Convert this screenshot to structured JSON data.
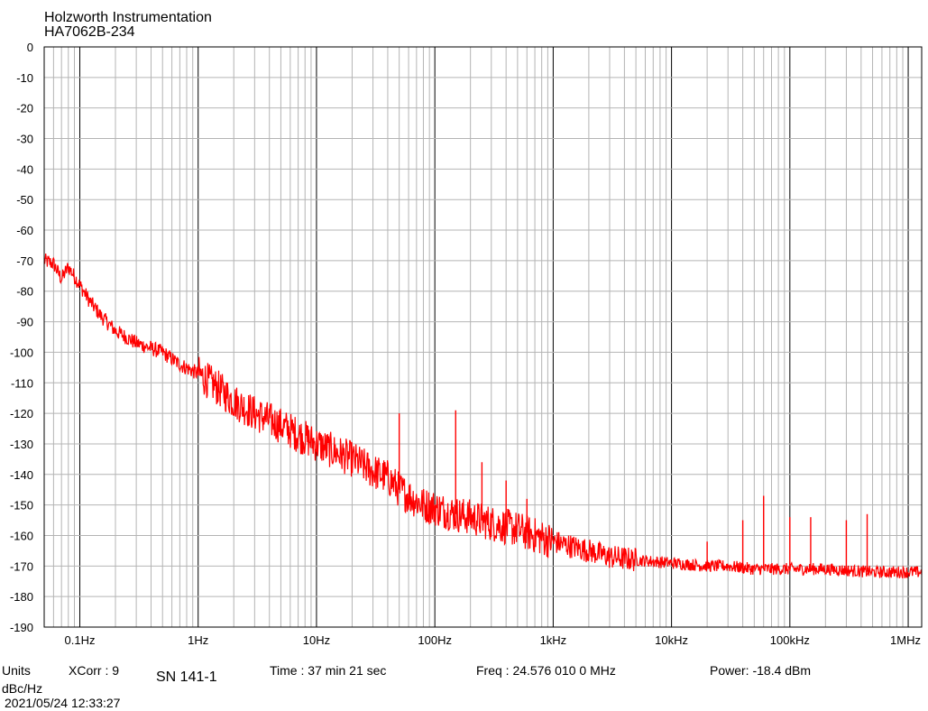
{
  "header": {
    "title": "Holzworth Instrumentation",
    "model": "HA7062B-234"
  },
  "footer": {
    "units_label": "Units",
    "units_value": "dBc/Hz",
    "xcorr": "XCorr : 9",
    "serial": "SN 141-1",
    "time": "Time : 37 min 21 sec",
    "freq": "Freq : 24.576 010 0 MHz",
    "power": "Power: -18.4 dBm",
    "timestamp": "2021/05/24 12:33:27"
  },
  "colors": {
    "trace": "#ff0000",
    "grid": "#b4b4b4",
    "major_grid": "#000000"
  },
  "chart_data": {
    "type": "line",
    "title": "Holzworth Instrumentation",
    "subtitle": "HA7062B-234",
    "x_scale": "log",
    "xlim": [
      0.05,
      1300000
    ],
    "ylim": [
      -190,
      0
    ],
    "x_ticks": [
      {
        "value": 0.1,
        "label": "0.1Hz"
      },
      {
        "value": 1,
        "label": "1Hz"
      },
      {
        "value": 10,
        "label": "10Hz"
      },
      {
        "value": 100,
        "label": "100Hz"
      },
      {
        "value": 1000,
        "label": "1kHz"
      },
      {
        "value": 10000,
        "label": "10kHz"
      },
      {
        "value": 100000,
        "label": "100kHz"
      },
      {
        "value": 1000000,
        "label": "1MHz"
      }
    ],
    "y_ticks": [
      {
        "value": 0,
        "label": "0"
      },
      {
        "value": -10,
        "label": "-10"
      },
      {
        "value": -20,
        "label": "-20"
      },
      {
        "value": -30,
        "label": "-30"
      },
      {
        "value": -40,
        "label": "-40"
      },
      {
        "value": -50,
        "label": "-50"
      },
      {
        "value": -60,
        "label": "-60"
      },
      {
        "value": -70,
        "label": "-70"
      },
      {
        "value": -80,
        "label": "-80"
      },
      {
        "value": -90,
        "label": "-90"
      },
      {
        "value": -100,
        "label": "-100"
      },
      {
        "value": -110,
        "label": "-110"
      },
      {
        "value": -120,
        "label": "-120"
      },
      {
        "value": -130,
        "label": "-130"
      },
      {
        "value": -140,
        "label": "-140"
      },
      {
        "value": -150,
        "label": "-150"
      },
      {
        "value": -160,
        "label": "-160"
      },
      {
        "value": -170,
        "label": "-170"
      },
      {
        "value": -180,
        "label": "-180"
      },
      {
        "value": -190,
        "label": "-190"
      }
    ],
    "grid": true,
    "series": [
      {
        "color": "#ff0000",
        "x": [
          0.05,
          0.06,
          0.07,
          0.08,
          0.1,
          0.12,
          0.15,
          0.2,
          0.3,
          0.5,
          0.7,
          1,
          1.5,
          2,
          3,
          5,
          7,
          10,
          15,
          20,
          30,
          40,
          50,
          60,
          80,
          100,
          150,
          200,
          300,
          500,
          700,
          1000,
          2000,
          3000,
          5000,
          10000,
          20000,
          30000,
          50000,
          100000,
          200000,
          500000,
          1000000,
          1300000
        ],
        "y": [
          -70,
          -71,
          -76,
          -72,
          -78,
          -83,
          -88,
          -93,
          -97,
          -100,
          -104,
          -107,
          -112,
          -116,
          -120,
          -124,
          -127,
          -130,
          -133,
          -135,
          -139,
          -141,
          -145,
          -147,
          -150,
          -151,
          -153,
          -154,
          -156,
          -158,
          -160,
          -162,
          -165,
          -167,
          -168,
          -169,
          -170,
          -170,
          -171,
          -171,
          -171,
          -172,
          -172,
          -172
        ]
      }
    ],
    "spurs": [
      {
        "x": 50,
        "y": -120
      },
      {
        "x": 150,
        "y": -119
      },
      {
        "x": 250,
        "y": -136
      },
      {
        "x": 400,
        "y": -142
      },
      {
        "x": 600,
        "y": -148
      },
      {
        "x": 20000,
        "y": -162
      },
      {
        "x": 40000,
        "y": -155
      },
      {
        "x": 60000,
        "y": -147
      },
      {
        "x": 100000,
        "y": -154
      },
      {
        "x": 150000,
        "y": -154
      },
      {
        "x": 300000,
        "y": -155
      },
      {
        "x": 450000,
        "y": -153
      }
    ]
  }
}
